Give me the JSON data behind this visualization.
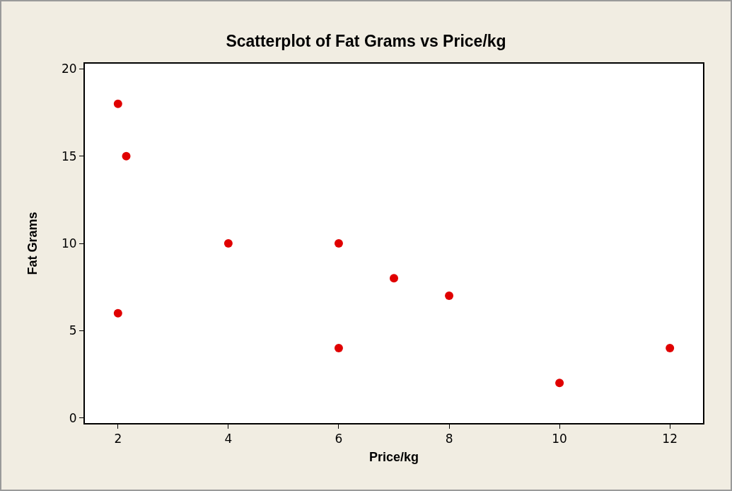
{
  "chart_data": {
    "type": "scatter",
    "title": "Scatterplot of Fat Grams vs Price/kg",
    "xlabel": "Price/kg",
    "ylabel": "Fat Grams",
    "x": [
      2,
      2.15,
      4,
      6,
      7,
      8,
      2,
      6,
      10,
      12
    ],
    "values": [
      18,
      15,
      10,
      10,
      8,
      7,
      6,
      4,
      2,
      4
    ],
    "color": "#e00000",
    "marker": "circle",
    "xlim": [
      1.4,
      12.6
    ],
    "xticks": [
      2,
      4,
      6,
      8,
      10,
      12
    ],
    "ylim": [
      -0.3,
      20.3
    ],
    "yticks": [
      0,
      5,
      10,
      15,
      20
    ],
    "grid": false
  }
}
